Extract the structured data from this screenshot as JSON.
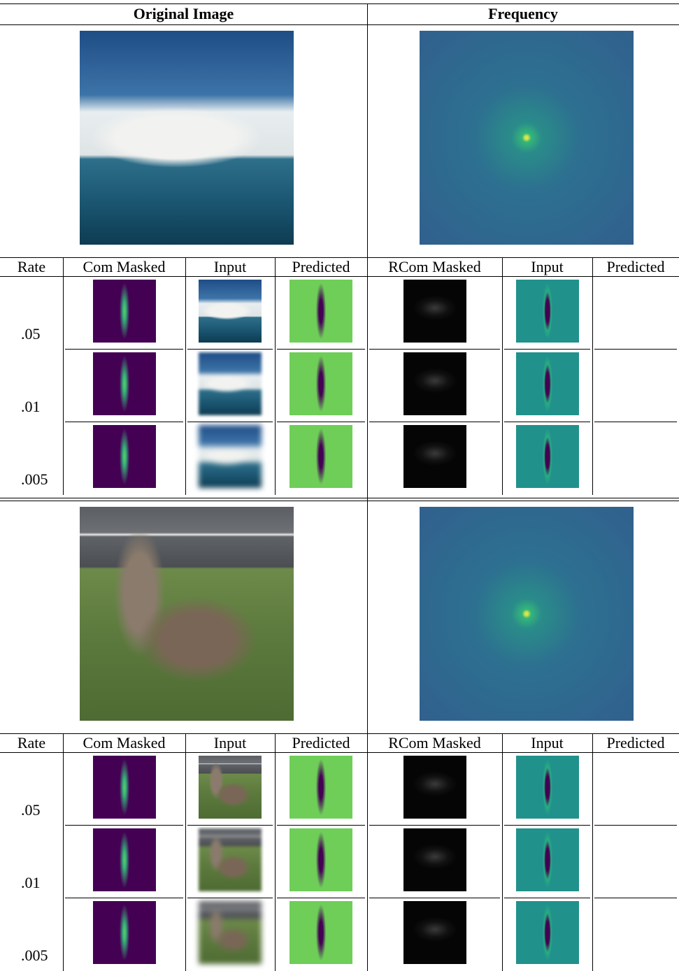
{
  "header": [
    "Original Image",
    "Frequency"
  ],
  "blocks": [
    {
      "columns": [
        "Rate",
        "Com Masked",
        "Input",
        "Predicted",
        "RCom Masked",
        "Input",
        "Predicted"
      ],
      "rates": [
        ".05",
        ".01",
        ".005"
      ]
    },
    {
      "columns": [
        "Rate",
        "Com Masked",
        "Input",
        "Predicted",
        "RCom Masked",
        "Input",
        "Predicted"
      ],
      "rates": [
        ".05",
        ".01",
        ".005"
      ]
    }
  ]
}
